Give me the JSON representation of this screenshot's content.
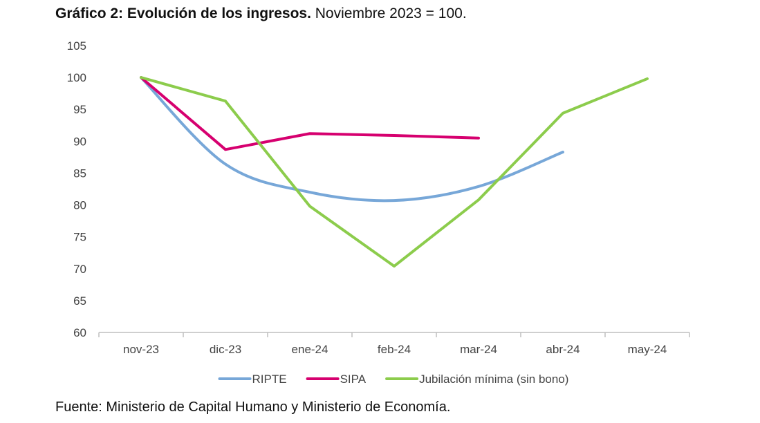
{
  "header": {
    "title_bold": "Gráfico 2: Evolución de los ingresos.",
    "title_rest": "Noviembre 2023 = 100."
  },
  "footer": {
    "source": "Fuente: Ministerio de Capital Humano y Ministerio de Economía."
  },
  "chart_data": {
    "type": "line",
    "categories": [
      "nov-23",
      "dic-23",
      "ene-24",
      "feb-24",
      "mar-24",
      "abr-24",
      "may-24"
    ],
    "ylim": [
      60,
      105
    ],
    "yticks": [
      60,
      65,
      70,
      75,
      80,
      85,
      90,
      95,
      100,
      105
    ],
    "grid": false,
    "legend_position": "bottom",
    "series": [
      {
        "name": "RIPTE",
        "color": "#77a7d8",
        "smooth": true,
        "values": [
          100,
          86.4,
          82.0,
          80.7,
          82.9,
          88.3,
          null
        ]
      },
      {
        "name": "SIPA",
        "color": "#d6006f",
        "smooth": false,
        "values": [
          100,
          88.7,
          91.2,
          90.9,
          90.5,
          null,
          null
        ]
      },
      {
        "name": "Jubilación mínima (sin bono)",
        "color": "#8ccc4c",
        "smooth": false,
        "values": [
          100,
          96.3,
          79.8,
          70.4,
          80.8,
          94.4,
          99.8
        ]
      }
    ]
  }
}
